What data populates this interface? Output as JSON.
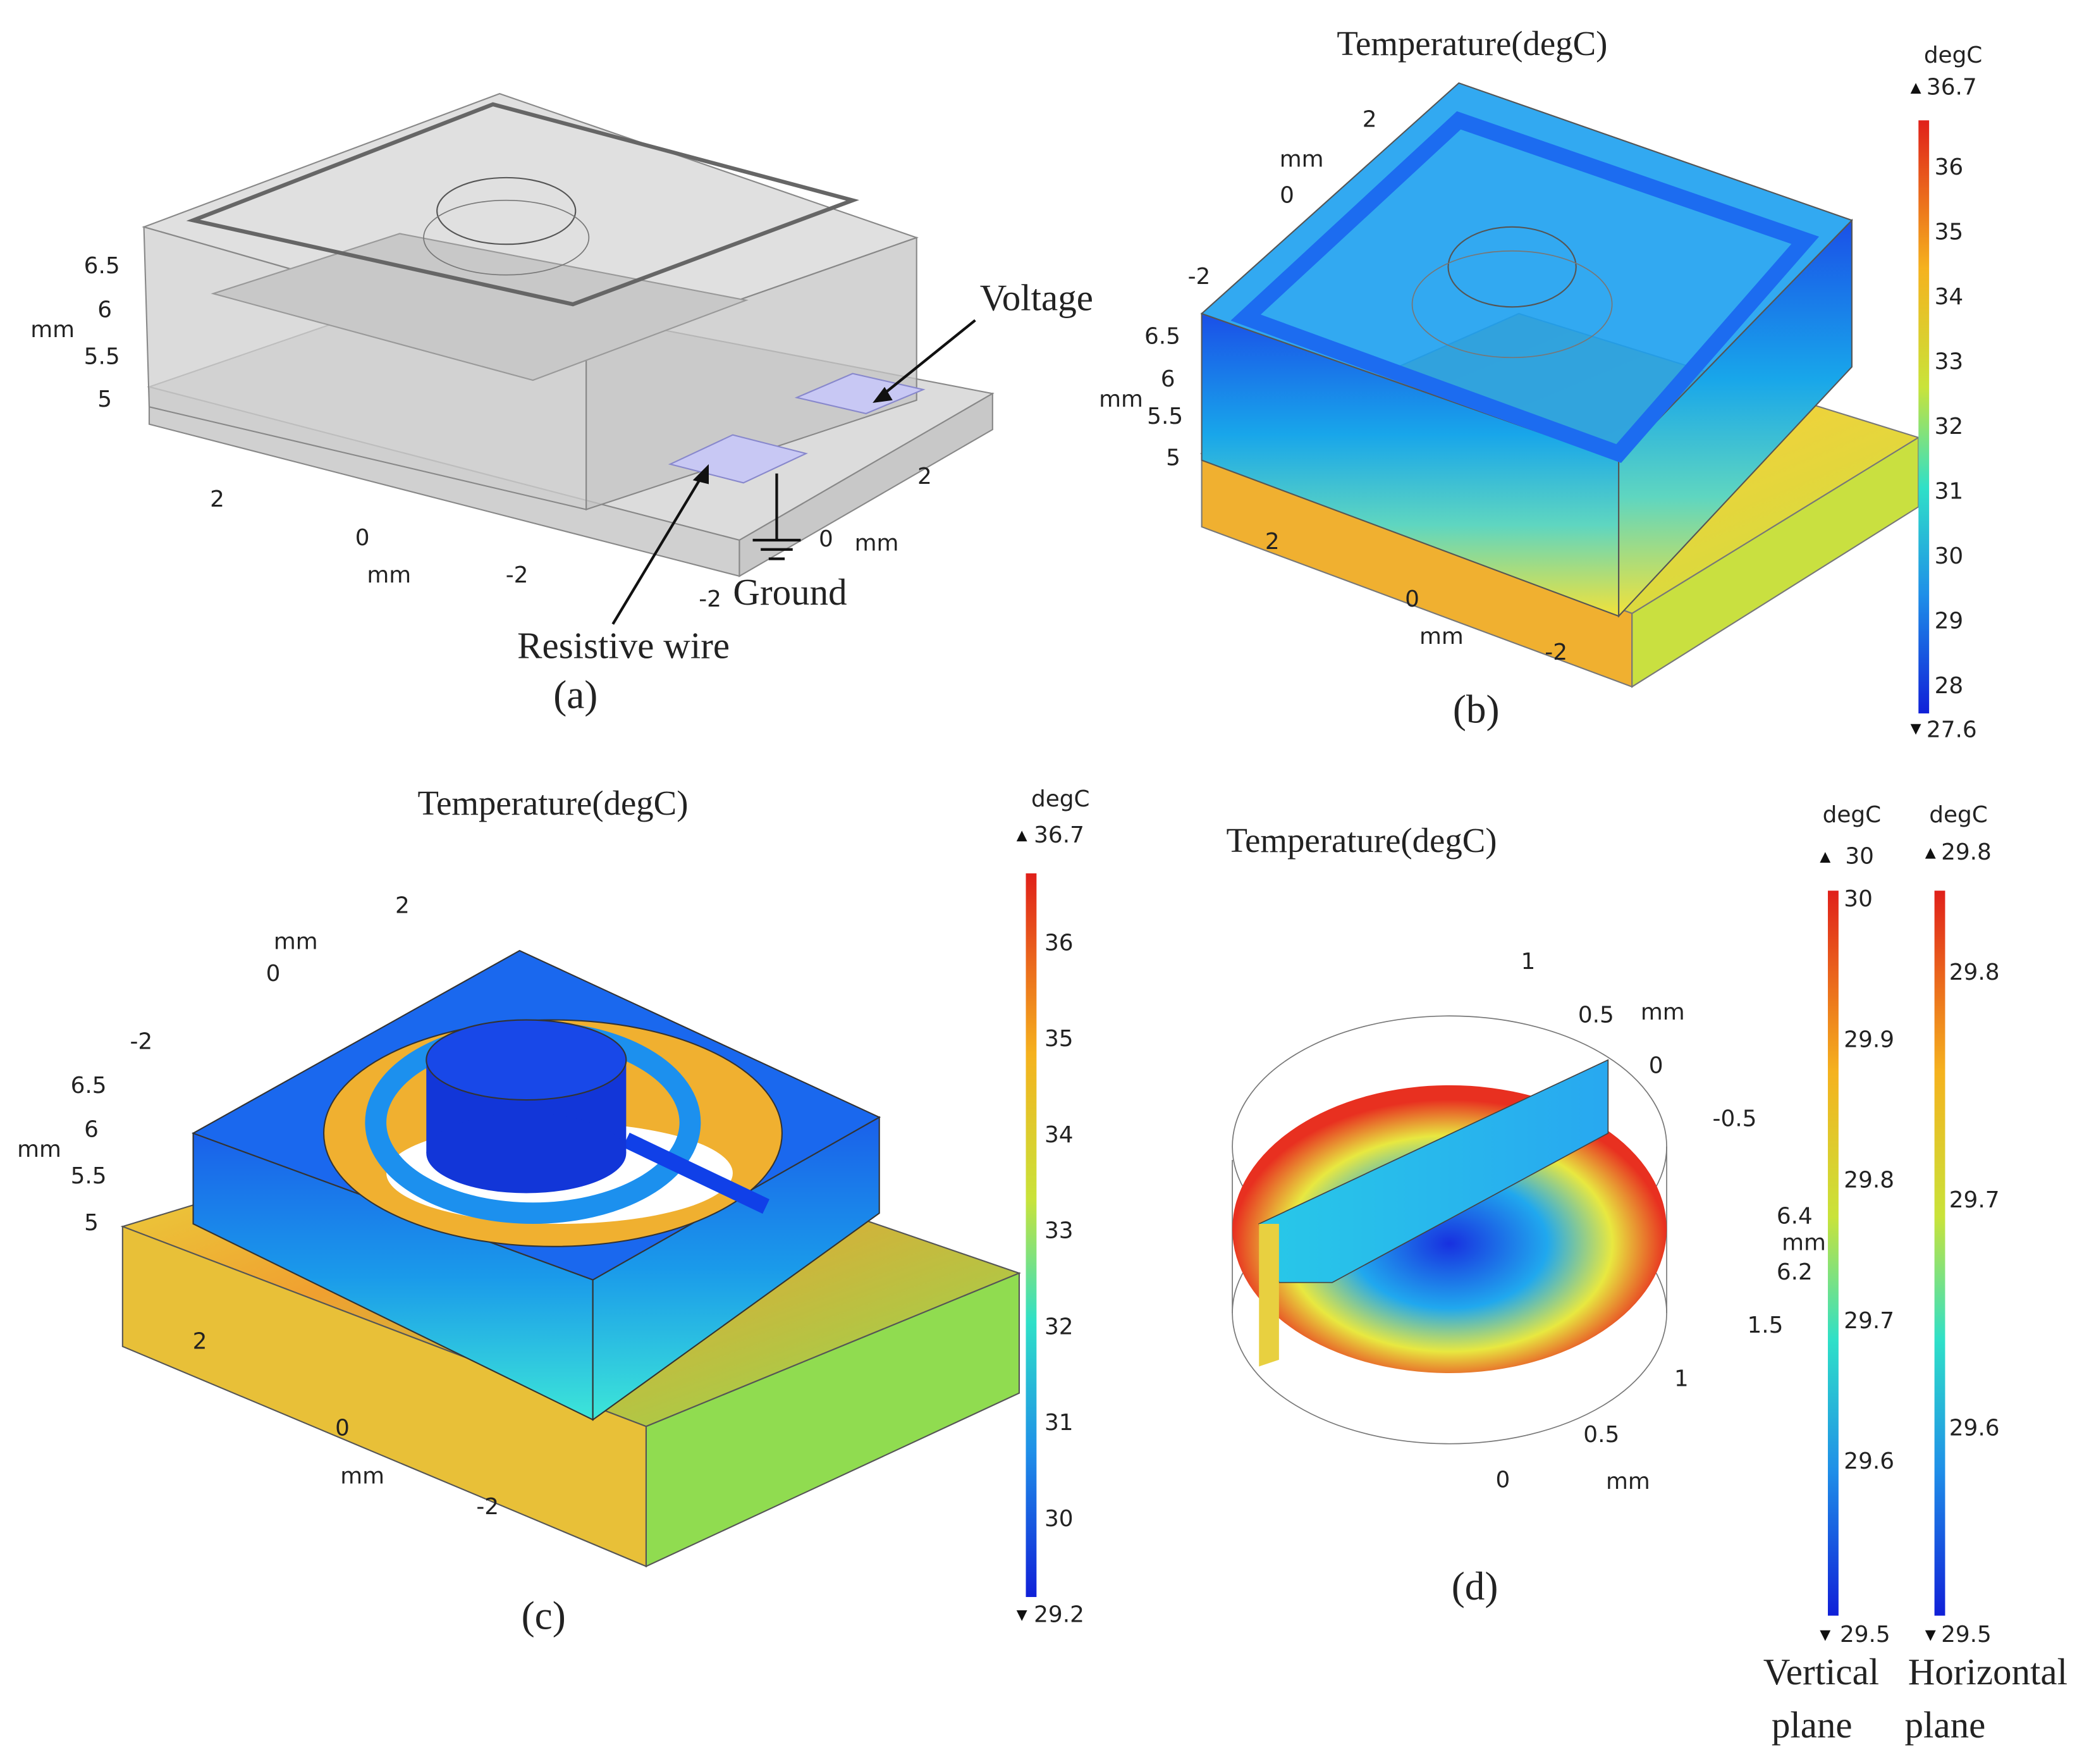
{
  "panel_a": {
    "label": "(a)",
    "z_ticks": [
      "6.5",
      "6",
      "5.5",
      "5"
    ],
    "z_unit": "mm",
    "front_ticks": [
      "2",
      "0",
      "-2"
    ],
    "front_unit": "mm",
    "right_ticks": [
      "2",
      "0",
      "-2"
    ],
    "right_unit": "mm",
    "annotations": {
      "voltage": "Voltage",
      "ground": "Ground",
      "wire": "Resistive wire"
    }
  },
  "panel_b": {
    "label": "(b)",
    "title": "Temperature(degC)",
    "top_ticks": [
      "2",
      "0",
      "-2"
    ],
    "top_unit": "mm",
    "z_ticks": [
      "6.5",
      "6",
      "5.5",
      "5"
    ],
    "z_unit": "mm",
    "front_ticks": [
      "2",
      "0",
      "-2"
    ],
    "front_unit": "mm",
    "colorbar": {
      "unit": "degC",
      "max": "36.7",
      "min": "27.6",
      "ticks": [
        "36",
        "35",
        "34",
        "33",
        "32",
        "31",
        "30",
        "29",
        "28"
      ]
    }
  },
  "panel_c": {
    "label": "(c)",
    "title": "Temperature(degC)",
    "top_ticks": [
      "2",
      "0",
      "-2"
    ],
    "top_unit": "mm",
    "z_ticks": [
      "6.5",
      "6",
      "5.5",
      "5"
    ],
    "z_unit": "mm",
    "front_ticks": [
      "2",
      "0",
      "-2"
    ],
    "front_unit": "mm",
    "colorbar": {
      "unit": "degC",
      "max": "36.7",
      "min": "29.2",
      "ticks": [
        "36",
        "35",
        "34",
        "33",
        "32",
        "31",
        "30"
      ]
    }
  },
  "panel_d": {
    "label": "(d)",
    "title": "Temperature(degC)",
    "top_ticks": [
      "1",
      "0.5",
      "0",
      "-0.5"
    ],
    "top_unit": "mm",
    "z_ticks": [
      "6.4",
      "6.2"
    ],
    "z_unit": "mm",
    "front_ticks": [
      "1.5",
      "1",
      "0.5",
      "0"
    ],
    "front_unit": "mm",
    "colorbars": [
      {
        "unit": "degC",
        "max": "30",
        "min": "29.5",
        "ticks": [
          "30",
          "29.9",
          "29.8",
          "29.7",
          "29.6"
        ],
        "caption_lines": [
          "Vertical",
          "plane"
        ]
      },
      {
        "unit": "degC",
        "max": "29.8",
        "min": "29.5",
        "ticks": [
          "29.8",
          "29.7",
          "29.6"
        ],
        "caption_lines": [
          "Horizontal",
          "plane"
        ]
      }
    ]
  }
}
